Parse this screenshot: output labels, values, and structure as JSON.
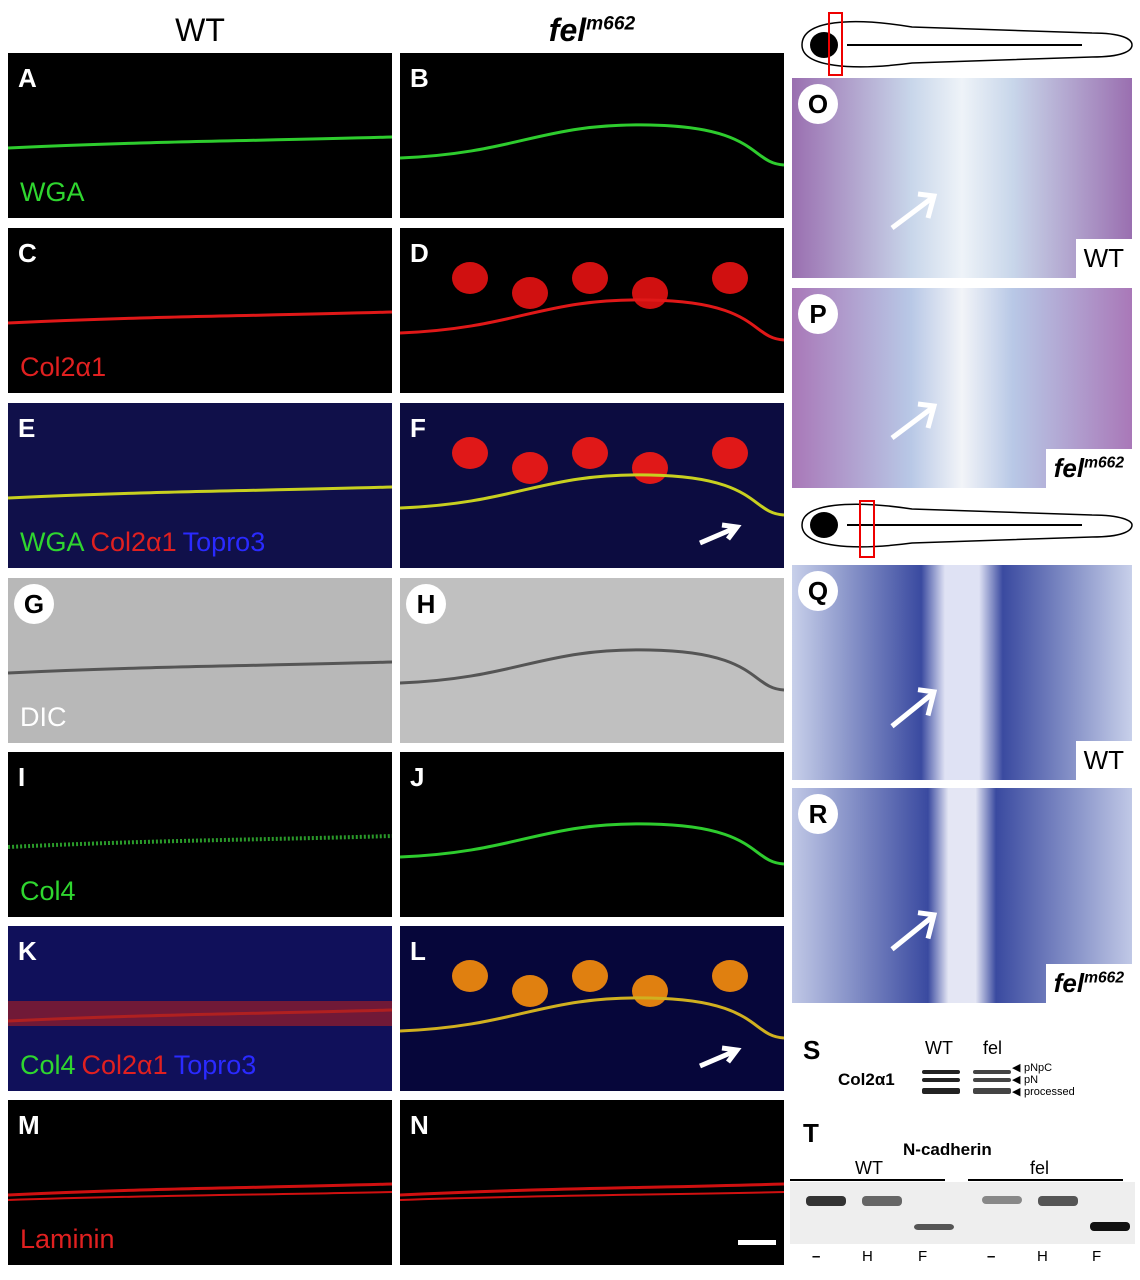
{
  "columns": [
    {
      "label": "WT"
    },
    {
      "label": "fel",
      "sup": "m662"
    }
  ],
  "panels": [
    {
      "letter": "A",
      "labels": [
        {
          "text": "WGA",
          "color": "#2fd62f"
        }
      ]
    },
    {
      "letter": "B",
      "labels": []
    },
    {
      "letter": "C",
      "labels": [
        {
          "text": "Col2α1",
          "color": "#e02020"
        }
      ]
    },
    {
      "letter": "D",
      "labels": []
    },
    {
      "letter": "E",
      "labels": [
        {
          "text": "WGA",
          "color": "#2fd62f"
        },
        {
          "text": "Col2α1",
          "color": "#e02020"
        },
        {
          "text": "Topro3",
          "color": "#2a2aff"
        }
      ]
    },
    {
      "letter": "F",
      "labels": []
    },
    {
      "letter": "G",
      "labels": [
        {
          "text": "DIC",
          "color": "#ffffff"
        }
      ]
    },
    {
      "letter": "H",
      "labels": []
    },
    {
      "letter": "I",
      "labels": [
        {
          "text": "Col4",
          "color": "#2fd62f"
        }
      ]
    },
    {
      "letter": "J",
      "labels": []
    },
    {
      "letter": "K",
      "labels": [
        {
          "text": "Col4",
          "color": "#2fd62f"
        },
        {
          "text": "Col2α1",
          "color": "#e02020"
        },
        {
          "text": "Topro3",
          "color": "#2a2aff"
        }
      ]
    },
    {
      "letter": "L",
      "labels": []
    },
    {
      "letter": "M",
      "labels": [
        {
          "text": "Laminin",
          "color": "#e02020"
        }
      ]
    },
    {
      "letter": "N",
      "labels": []
    }
  ],
  "histology": [
    {
      "letter": "O",
      "corner": {
        "text": "WT"
      }
    },
    {
      "letter": "P",
      "corner": {
        "text": "fel",
        "sup": "m662"
      }
    },
    {
      "letter": "Q",
      "corner": {
        "text": "WT"
      }
    },
    {
      "letter": "R",
      "corner": {
        "text": "fel",
        "sup": "m662"
      }
    }
  ],
  "blot_s": {
    "letter": "S",
    "row_label": "Col2α1",
    "lanes": [
      "WT",
      "fel"
    ],
    "markers": [
      "pNpC",
      "pN",
      "processed"
    ]
  },
  "blot_t": {
    "letter": "T",
    "title": "N-cadherin",
    "groups": [
      "WT",
      "fel"
    ],
    "lanes": [
      "–",
      "H",
      "F",
      "–",
      "H",
      "F"
    ]
  }
}
